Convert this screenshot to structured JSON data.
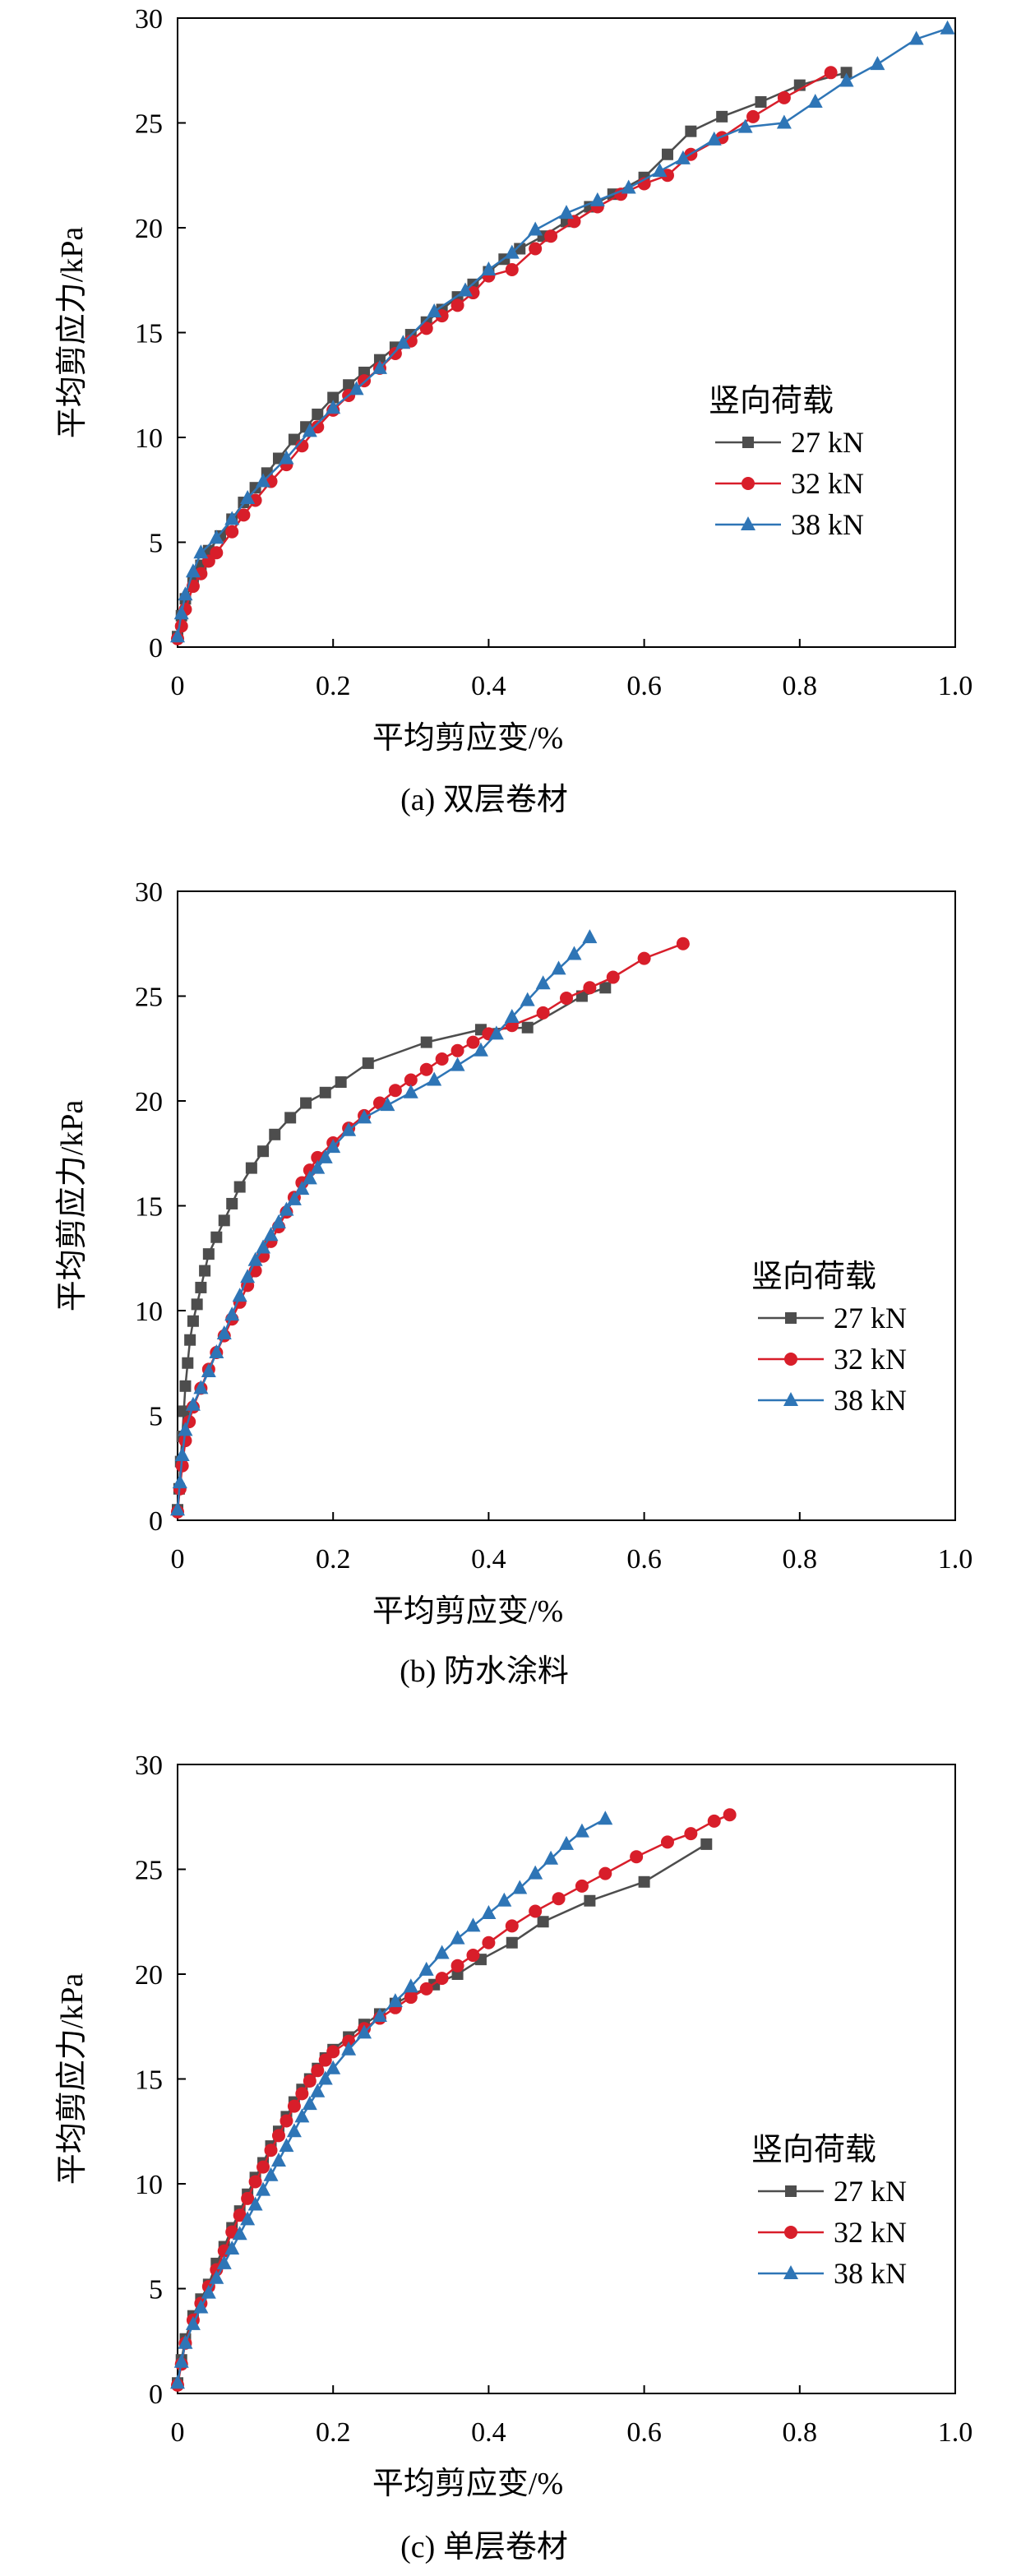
{
  "chart_data": [
    {
      "type": "line",
      "panel": "a",
      "caption": "(a) 双层卷材",
      "xlabel": "平均剪应变/%",
      "ylabel": "平均剪应力/kPa",
      "xlim": [
        0,
        1.0
      ],
      "ylim": [
        0,
        30
      ],
      "xticks": [
        "0",
        "0.2",
        "0.4",
        "0.6",
        "0.8",
        "1.0"
      ],
      "yticks": [
        "0",
        "5",
        "10",
        "15",
        "20",
        "25",
        "30"
      ],
      "legend_title": "竖向荷载",
      "legend_position": "center-right",
      "grid": false,
      "series": [
        {
          "name": "27 kN",
          "color": "#4d4d4d",
          "marker": "square",
          "x": [
            0,
            0.005,
            0.01,
            0.02,
            0.03,
            0.04,
            0.055,
            0.07,
            0.085,
            0.1,
            0.115,
            0.13,
            0.15,
            0.165,
            0.18,
            0.2,
            0.22,
            0.24,
            0.26,
            0.28,
            0.3,
            0.32,
            0.34,
            0.36,
            0.38,
            0.4,
            0.42,
            0.44,
            0.47,
            0.5,
            0.53,
            0.56,
            0.6,
            0.63,
            0.66,
            0.7,
            0.75,
            0.8,
            0.86
          ],
          "y": [
            0.5,
            1.5,
            2.3,
            3.1,
            3.9,
            4.6,
            5.3,
            6.1,
            6.9,
            7.6,
            8.3,
            9.0,
            9.9,
            10.5,
            11.1,
            11.9,
            12.5,
            13.1,
            13.7,
            14.3,
            14.9,
            15.5,
            16.1,
            16.7,
            17.3,
            17.9,
            18.5,
            19.0,
            19.6,
            20.3,
            21.0,
            21.6,
            22.4,
            23.5,
            24.6,
            25.3,
            26.0,
            26.8,
            27.4
          ]
        },
        {
          "name": "32 kN",
          "color": "#d81e2a",
          "marker": "circle",
          "x": [
            0,
            0.005,
            0.01,
            0.02,
            0.03,
            0.04,
            0.05,
            0.07,
            0.085,
            0.1,
            0.12,
            0.14,
            0.16,
            0.18,
            0.2,
            0.22,
            0.24,
            0.26,
            0.28,
            0.3,
            0.32,
            0.34,
            0.36,
            0.38,
            0.4,
            0.43,
            0.46,
            0.48,
            0.51,
            0.54,
            0.57,
            0.6,
            0.63,
            0.66,
            0.7,
            0.74,
            0.78,
            0.84
          ],
          "y": [
            0.4,
            1.0,
            1.8,
            2.9,
            3.5,
            4.1,
            4.5,
            5.5,
            6.3,
            7.0,
            7.9,
            8.7,
            9.6,
            10.5,
            11.3,
            12.0,
            12.7,
            13.3,
            14.0,
            14.6,
            15.2,
            15.8,
            16.3,
            16.9,
            17.7,
            18.0,
            19.0,
            19.6,
            20.3,
            21.0,
            21.6,
            22.1,
            22.5,
            23.5,
            24.3,
            25.3,
            26.2,
            27.4
          ]
        },
        {
          "name": "38 kN",
          "color": "#2e75b6",
          "marker": "triangle",
          "x": [
            0,
            0.005,
            0.01,
            0.02,
            0.03,
            0.05,
            0.07,
            0.09,
            0.11,
            0.14,
            0.17,
            0.2,
            0.23,
            0.26,
            0.29,
            0.33,
            0.37,
            0.4,
            0.43,
            0.46,
            0.5,
            0.54,
            0.58,
            0.62,
            0.65,
            0.69,
            0.73,
            0.78,
            0.82,
            0.86,
            0.9,
            0.95,
            0.99
          ],
          "y": [
            0.5,
            1.6,
            2.5,
            3.6,
            4.5,
            5.2,
            6.1,
            7.1,
            7.9,
            9.0,
            10.3,
            11.4,
            12.3,
            13.3,
            14.5,
            16.0,
            17.0,
            18.0,
            18.8,
            19.9,
            20.7,
            21.3,
            21.9,
            22.7,
            23.3,
            24.2,
            24.8,
            25.0,
            26.0,
            27.0,
            27.8,
            29.0,
            29.5
          ]
        }
      ]
    },
    {
      "type": "line",
      "panel": "b",
      "caption": "(b) 防水涂料",
      "xlabel": "平均剪应变/%",
      "ylabel": "平均剪应力/kPa",
      "xlim": [
        0,
        1.0
      ],
      "ylim": [
        0,
        30
      ],
      "xticks": [
        "0",
        "0.2",
        "0.4",
        "0.6",
        "0.8",
        "1.0"
      ],
      "yticks": [
        "0",
        "5",
        "10",
        "15",
        "20",
        "25",
        "30"
      ],
      "legend_title": "竖向荷载",
      "legend_position": "center-right",
      "grid": false,
      "series": [
        {
          "name": "27 kN",
          "color": "#4d4d4d",
          "marker": "square",
          "x": [
            0,
            0.002,
            0.004,
            0.006,
            0.008,
            0.01,
            0.013,
            0.016,
            0.02,
            0.025,
            0.03,
            0.035,
            0.04,
            0.05,
            0.06,
            0.07,
            0.08,
            0.095,
            0.11,
            0.125,
            0.145,
            0.165,
            0.19,
            0.21,
            0.245,
            0.32,
            0.39,
            0.45,
            0.52,
            0.55
          ],
          "y": [
            0.5,
            1.5,
            2.8,
            4.0,
            5.2,
            6.4,
            7.5,
            8.6,
            9.5,
            10.3,
            11.1,
            11.9,
            12.7,
            13.5,
            14.3,
            15.1,
            15.9,
            16.8,
            17.6,
            18.4,
            19.2,
            19.9,
            20.4,
            20.9,
            21.8,
            22.8,
            23.4,
            23.5,
            25.0,
            25.4
          ]
        },
        {
          "name": "32 kN",
          "color": "#d81e2a",
          "marker": "circle",
          "x": [
            0,
            0.003,
            0.006,
            0.01,
            0.015,
            0.02,
            0.03,
            0.04,
            0.05,
            0.06,
            0.07,
            0.08,
            0.09,
            0.1,
            0.11,
            0.12,
            0.13,
            0.14,
            0.15,
            0.16,
            0.17,
            0.18,
            0.2,
            0.22,
            0.24,
            0.26,
            0.28,
            0.3,
            0.32,
            0.34,
            0.36,
            0.38,
            0.4,
            0.43,
            0.47,
            0.5,
            0.53,
            0.56,
            0.6,
            0.65
          ],
          "y": [
            0.4,
            1.5,
            2.6,
            3.8,
            4.7,
            5.4,
            6.3,
            7.2,
            8.0,
            8.8,
            9.6,
            10.4,
            11.2,
            11.9,
            12.6,
            13.3,
            14.0,
            14.7,
            15.4,
            16.1,
            16.7,
            17.3,
            18.0,
            18.7,
            19.3,
            19.9,
            20.5,
            21.0,
            21.5,
            22.0,
            22.4,
            22.8,
            23.2,
            23.6,
            24.2,
            24.9,
            25.4,
            25.9,
            26.8,
            27.5
          ]
        },
        {
          "name": "38 kN",
          "color": "#2e75b6",
          "marker": "triangle",
          "x": [
            0,
            0.003,
            0.006,
            0.01,
            0.02,
            0.03,
            0.04,
            0.05,
            0.06,
            0.07,
            0.08,
            0.09,
            0.1,
            0.11,
            0.12,
            0.13,
            0.14,
            0.15,
            0.16,
            0.17,
            0.18,
            0.19,
            0.2,
            0.22,
            0.24,
            0.27,
            0.3,
            0.33,
            0.36,
            0.39,
            0.41,
            0.43,
            0.45,
            0.47,
            0.49,
            0.51,
            0.53
          ],
          "y": [
            0.5,
            1.8,
            3.1,
            4.3,
            5.5,
            6.3,
            7.1,
            8.0,
            8.9,
            9.8,
            10.7,
            11.6,
            12.4,
            13.0,
            13.6,
            14.2,
            14.8,
            15.3,
            15.8,
            16.3,
            16.8,
            17.3,
            17.8,
            18.6,
            19.2,
            19.8,
            20.4,
            21.0,
            21.7,
            22.4,
            23.2,
            24.0,
            24.8,
            25.6,
            26.3,
            27.0,
            27.8
          ]
        }
      ]
    },
    {
      "type": "line",
      "panel": "c",
      "caption": "(c) 单层卷材",
      "xlabel": "平均剪应变/%",
      "ylabel": "平均剪应力/kPa",
      "xlim": [
        0,
        1.0
      ],
      "ylim": [
        0,
        30
      ],
      "xticks": [
        "0",
        "0.2",
        "0.4",
        "0.6",
        "0.8",
        "1.0"
      ],
      "yticks": [
        "0",
        "5",
        "10",
        "15",
        "20",
        "25",
        "30"
      ],
      "legend_title": "竖向荷载",
      "legend_position": "center-right",
      "grid": false,
      "series": [
        {
          "name": "27 kN",
          "color": "#4d4d4d",
          "marker": "square",
          "x": [
            0,
            0.005,
            0.01,
            0.02,
            0.03,
            0.04,
            0.05,
            0.06,
            0.07,
            0.08,
            0.09,
            0.1,
            0.11,
            0.12,
            0.13,
            0.14,
            0.15,
            0.16,
            0.17,
            0.18,
            0.19,
            0.2,
            0.22,
            0.24,
            0.26,
            0.28,
            0.3,
            0.33,
            0.36,
            0.39,
            0.43,
            0.47,
            0.53,
            0.6,
            0.68
          ],
          "y": [
            0.5,
            1.6,
            2.6,
            3.7,
            4.5,
            5.2,
            6.2,
            7.0,
            7.9,
            8.7,
            9.5,
            10.3,
            11.0,
            11.8,
            12.5,
            13.2,
            13.9,
            14.5,
            15.0,
            15.5,
            16.0,
            16.4,
            17.0,
            17.6,
            18.1,
            18.6,
            19.0,
            19.5,
            20.0,
            20.7,
            21.5,
            22.5,
            23.5,
            24.4,
            26.2
          ]
        },
        {
          "name": "32 kN",
          "color": "#d81e2a",
          "marker": "circle",
          "x": [
            0,
            0.005,
            0.01,
            0.02,
            0.03,
            0.04,
            0.05,
            0.06,
            0.07,
            0.08,
            0.09,
            0.1,
            0.11,
            0.12,
            0.13,
            0.14,
            0.15,
            0.16,
            0.17,
            0.18,
            0.19,
            0.2,
            0.22,
            0.24,
            0.26,
            0.28,
            0.3,
            0.32,
            0.34,
            0.36,
            0.38,
            0.4,
            0.43,
            0.46,
            0.49,
            0.52,
            0.55,
            0.59,
            0.63,
            0.66,
            0.69,
            0.71
          ],
          "y": [
            0.4,
            1.4,
            2.4,
            3.5,
            4.3,
            5.1,
            5.9,
            6.8,
            7.7,
            8.5,
            9.3,
            10.1,
            10.8,
            11.6,
            12.3,
            13.0,
            13.7,
            14.3,
            14.9,
            15.4,
            15.9,
            16.3,
            16.8,
            17.4,
            17.9,
            18.4,
            18.9,
            19.3,
            19.8,
            20.4,
            20.9,
            21.5,
            22.3,
            23.0,
            23.6,
            24.2,
            24.8,
            25.6,
            26.3,
            26.7,
            27.3,
            27.6
          ]
        },
        {
          "name": "38 kN",
          "color": "#2e75b6",
          "marker": "triangle",
          "x": [
            0,
            0.005,
            0.01,
            0.02,
            0.03,
            0.04,
            0.05,
            0.06,
            0.07,
            0.08,
            0.09,
            0.1,
            0.11,
            0.12,
            0.13,
            0.14,
            0.15,
            0.16,
            0.17,
            0.18,
            0.19,
            0.2,
            0.22,
            0.24,
            0.26,
            0.28,
            0.3,
            0.32,
            0.34,
            0.36,
            0.38,
            0.4,
            0.42,
            0.44,
            0.46,
            0.48,
            0.5,
            0.52,
            0.55
          ],
          "y": [
            0.5,
            1.5,
            2.4,
            3.3,
            4.1,
            4.8,
            5.5,
            6.2,
            6.9,
            7.6,
            8.3,
            9.0,
            9.7,
            10.4,
            11.1,
            11.8,
            12.5,
            13.2,
            13.8,
            14.4,
            15.0,
            15.5,
            16.4,
            17.2,
            18.0,
            18.7,
            19.4,
            20.2,
            21.0,
            21.7,
            22.3,
            22.9,
            23.5,
            24.1,
            24.8,
            25.5,
            26.2,
            26.8,
            27.4
          ]
        }
      ]
    }
  ]
}
